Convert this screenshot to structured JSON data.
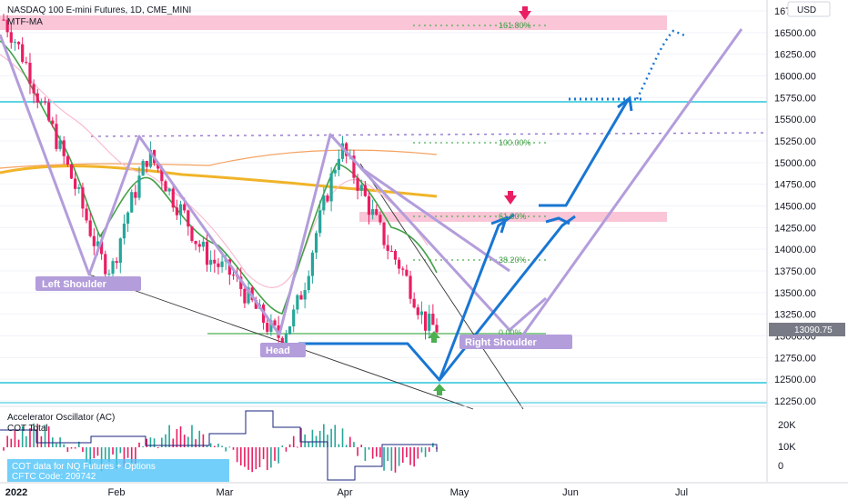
{
  "header": {
    "symbol_line": "NASDAQ 100 E-mini Futures, 1D, CME_MINI",
    "indicator": "MTF-MA",
    "currency": "USD"
  },
  "price_axis": {
    "ticks": [
      "16750.00",
      "16500.00",
      "16250.00",
      "16000.00",
      "15750.00",
      "15500.00",
      "15250.00",
      "15000.00",
      "14750.00",
      "14500.00",
      "14250.00",
      "14000.00",
      "13750.00",
      "13500.00",
      "13250.00",
      "13000.00",
      "12750.00",
      "12500.00",
      "12250.00"
    ],
    "last_price": "13090.75"
  },
  "time_axis": {
    "ticks": [
      "2022",
      "Feb",
      "Mar",
      "Apr",
      "May",
      "Jun",
      "Jul"
    ]
  },
  "fib_labels": [
    "161.80%",
    "100.00%",
    "61.80%",
    "38.20%",
    "0.00%"
  ],
  "pattern_labels": {
    "left": "Left Shoulder",
    "head": "Head",
    "right": "Right Shoulder"
  },
  "oscillator": {
    "title": "Accelerator Oscillator (AC)",
    "subtitle": "COT Total",
    "ticks": [
      "20K",
      "10K",
      "0"
    ],
    "info_line1": "COT data for NQ Futures + Options",
    "info_line2": "CFTC Code: 209742"
  },
  "colors": {
    "bull": "#26a69a",
    "bear": "#e91e63",
    "pattern": "#b39ddb",
    "projection": "#1976d2",
    "zone": "#f8bbd0",
    "support": "#26c6da",
    "ma_gold": "#f0b429",
    "ma_green": "#43a047"
  },
  "chart_data": {
    "type": "candlestick",
    "timeframe": "1D",
    "x_ticks": [
      "2022",
      "Feb",
      "Mar",
      "Apr",
      "May",
      "Jun",
      "Jul"
    ],
    "y_ticks": [
      16750,
      16500,
      16250,
      16000,
      15750,
      15500,
      15250,
      15000,
      14750,
      14500,
      14250,
      14000,
      13750,
      13500,
      13250,
      13000,
      12750,
      12500,
      12250
    ],
    "last_price": 13090.75,
    "close_path": [
      16650,
      16400,
      16100,
      15700,
      15400,
      15050,
      14700,
      14300,
      13900,
      13760,
      14300,
      14700,
      15100,
      14900,
      14600,
      14400,
      14100,
      13900,
      13800,
      13700,
      13500,
      13300,
      13100,
      12980,
      13200,
      13600,
      14200,
      14700,
      15200,
      14900,
      14600,
      14300,
      14000,
      13800,
      13500,
      13150,
      13090.75
    ],
    "fibonacci": [
      {
        "level": "161.80%",
        "price": 16560
      },
      {
        "level": "100.00%",
        "price": 15240
      },
      {
        "level": "61.80%",
        "price": 14330
      },
      {
        "level": "38.20%",
        "price": 13880
      },
      {
        "level": "0.00%",
        "price": 13030
      }
    ],
    "support_lines": [
      15720,
      12450,
      12220
    ],
    "zones": [
      [
        16550,
        16730
      ],
      [
        14300,
        14390
      ]
    ],
    "annotations": [
      "Left Shoulder",
      "Head",
      "Right Shoulder"
    ],
    "oscillator": {
      "name": "Accelerator Oscillator (AC)",
      "y_ticks": [
        "20K",
        "10K",
        "0"
      ]
    }
  }
}
